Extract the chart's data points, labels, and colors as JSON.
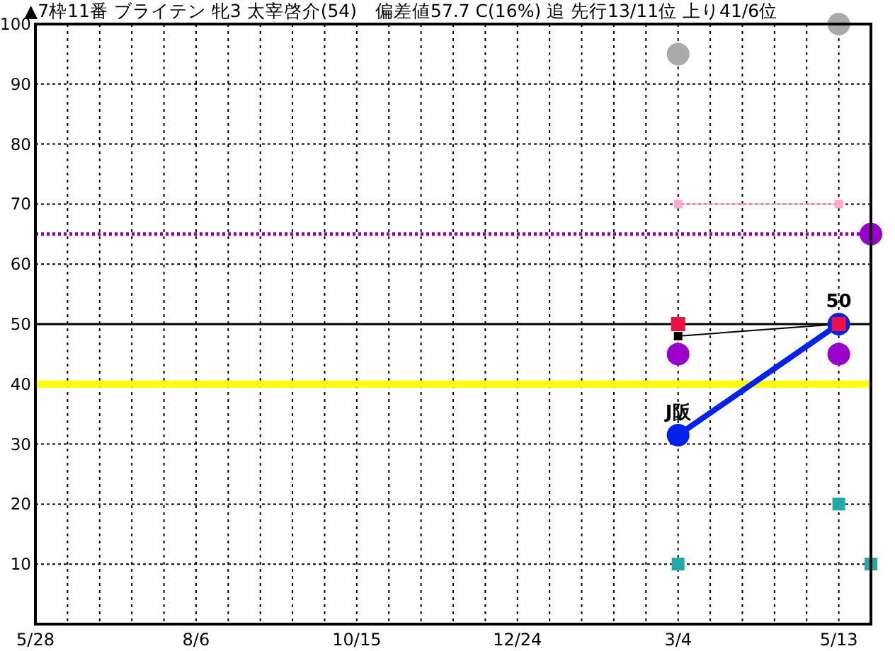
{
  "chart_data": {
    "type": "line",
    "title": "▲7枠11番 ブライテン 牝3 太宰啓介(54)　偏差値57.7 C(16%) 追  先行13/11位 上り41/6位",
    "categories": [
      "5/28",
      null,
      null,
      null,
      null,
      "8/6",
      null,
      null,
      null,
      null,
      "10/15",
      null,
      null,
      null,
      null,
      "12/24",
      null,
      null,
      null,
      null,
      "3/4",
      null,
      null,
      null,
      null,
      "5/13",
      null
    ],
    "ylim": [
      0,
      100
    ],
    "yticks": [
      10,
      20,
      30,
      40,
      50,
      60,
      70,
      80,
      90,
      100
    ],
    "grid": true,
    "series": [
      {
        "type": "scatter",
        "marker": "circle",
        "color": "#aaaaaa",
        "values": [
          null,
          null,
          null,
          null,
          null,
          null,
          null,
          null,
          null,
          null,
          null,
          null,
          null,
          null,
          null,
          null,
          null,
          null,
          null,
          null,
          95,
          null,
          null,
          null,
          null,
          100,
          null
        ]
      },
      {
        "marker": "square",
        "color": "#ffaacc",
        "values": [
          null,
          null,
          null,
          null,
          null,
          null,
          null,
          null,
          null,
          null,
          null,
          null,
          null,
          null,
          null,
          null,
          null,
          null,
          null,
          null,
          70,
          null,
          null,
          null,
          null,
          70,
          null
        ]
      },
      {
        "type": "scatter",
        "marker": "circle",
        "color": "#9900cc",
        "values": [
          null,
          null,
          null,
          null,
          null,
          null,
          null,
          null,
          null,
          null,
          null,
          null,
          null,
          null,
          null,
          null,
          null,
          null,
          null,
          null,
          45,
          null,
          null,
          null,
          null,
          45,
          65
        ]
      },
      {
        "type": "scatter",
        "marker": "square",
        "color": "#22aaaa",
        "values": [
          null,
          null,
          null,
          null,
          null,
          null,
          null,
          null,
          null,
          null,
          null,
          null,
          null,
          null,
          null,
          null,
          null,
          null,
          null,
          null,
          10,
          null,
          null,
          null,
          null,
          20,
          10
        ]
      },
      {
        "marker": "square",
        "color": "#000000",
        "values": [
          null,
          null,
          null,
          null,
          null,
          null,
          null,
          null,
          null,
          null,
          null,
          null,
          null,
          null,
          null,
          null,
          null,
          null,
          null,
          null,
          48,
          null,
          null,
          null,
          null,
          50,
          null
        ]
      },
      {
        "marker": "circle",
        "color": "#0022ee",
        "values": [
          null,
          null,
          null,
          null,
          null,
          null,
          null,
          null,
          null,
          null,
          null,
          null,
          null,
          null,
          null,
          null,
          null,
          null,
          null,
          null,
          31.5,
          null,
          null,
          null,
          null,
          50,
          null
        ]
      },
      {
        "type": "scatter",
        "marker": "square",
        "color": "#ee1144",
        "values": [
          null,
          null,
          null,
          null,
          null,
          null,
          null,
          null,
          null,
          null,
          null,
          null,
          null,
          null,
          null,
          null,
          null,
          null,
          null,
          null,
          50,
          null,
          null,
          null,
          null,
          50,
          null
        ]
      }
    ],
    "ref_lines": [
      {
        "axis": "y",
        "value": 65,
        "color": "#990099",
        "line_style": "dotted"
      },
      {
        "axis": "y",
        "value": 50,
        "color": "#000000",
        "line_style": "solid"
      },
      {
        "axis": "y",
        "value": 40,
        "color": "#ffff00",
        "line_style": "solid"
      }
    ],
    "annotations": [
      {
        "text": "50",
        "x": "5/13",
        "y": 50
      },
      {
        "text": "J阪",
        "x": "3/4",
        "y": 31.5
      }
    ]
  }
}
